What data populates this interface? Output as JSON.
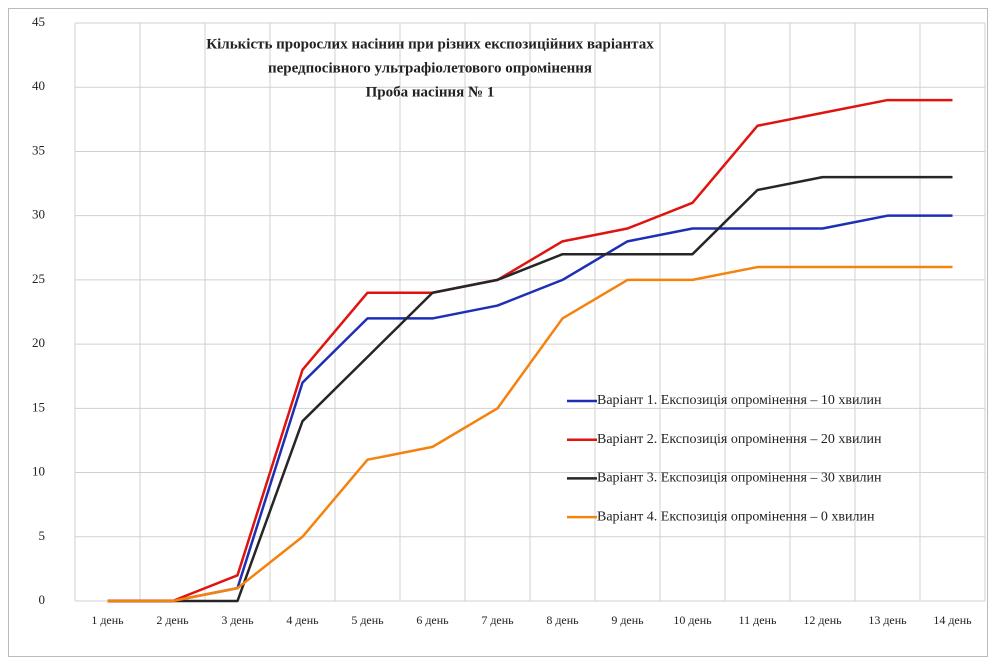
{
  "chart_data": {
    "type": "line",
    "title": [
      "Кількість пророслих насінин при різних експозиційних варіантах",
      "передпосівного ультрафіолетового опромінення",
      "Проба насіння № 1"
    ],
    "categories": [
      "1 день",
      "2 день",
      "3 день",
      "4 день",
      "5 день",
      "6 день",
      "7 день",
      "8 день",
      "9 день",
      "10 день",
      "11 день",
      "12 день",
      "13 день",
      "14 день"
    ],
    "series": [
      {
        "name": "Варіант 1. Експозиція опромінення – 10 хвилин",
        "color": "#1f2fb4",
        "values": [
          0,
          0,
          1,
          17,
          22,
          22,
          23,
          25,
          28,
          29,
          29,
          29,
          30,
          30
        ]
      },
      {
        "name": "Варіант 2. Експозиція опромінення – 20 хвилин",
        "color": "#e0140f",
        "values": [
          0,
          0,
          2,
          18,
          24,
          24,
          25,
          28,
          29,
          31,
          37,
          38,
          39,
          39
        ]
      },
      {
        "name": "Варіант 3. Експозиція опромінення – 30 хвилин",
        "color": "#262626",
        "values": [
          0,
          0,
          0,
          14,
          19,
          24,
          25,
          27,
          27,
          27,
          32,
          33,
          33,
          33
        ]
      },
      {
        "name": "Варіант 4. Експозиція опромінення – 0 хвилин",
        "color": "#f5820f",
        "values": [
          0,
          0,
          1,
          5,
          11,
          12,
          15,
          22,
          25,
          25,
          26,
          26,
          26,
          26
        ]
      }
    ],
    "ylim": [
      0,
      45
    ],
    "yticks": [
      0,
      5,
      10,
      15,
      20,
      25,
      30,
      35,
      40,
      45
    ],
    "grid": true,
    "legend": "right"
  }
}
